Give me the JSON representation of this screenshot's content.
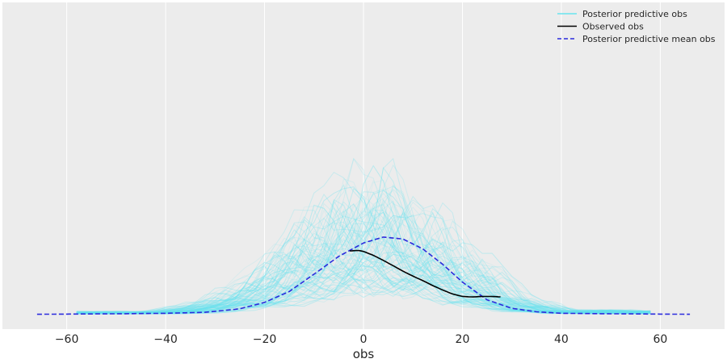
{
  "chart_data": {
    "type": "line",
    "title": "",
    "xlabel": "obs",
    "ylabel": "",
    "xlim": [
      -73,
      73
    ],
    "ylim": [
      -0.003,
      0.063
    ],
    "xticks": [
      -60,
      -40,
      -20,
      0,
      20,
      40,
      60
    ],
    "xtick_labels": [
      "−60",
      "−40",
      "−20",
      "0",
      "20",
      "40",
      "60"
    ],
    "grid": true,
    "background": "#ececec",
    "legend_position": "top-right",
    "series": [
      {
        "name": "Posterior predictive obs",
        "color": "#68e3ef",
        "style": "solid",
        "kind": "sample-band",
        "x": [
          -40,
          -30,
          -20,
          -10,
          0,
          10,
          20,
          30,
          40
        ],
        "y": [
          0.0002,
          0.001,
          0.003,
          0.007,
          0.0105,
          0.0085,
          0.005,
          0.0015,
          0.0003
        ]
      },
      {
        "name": "Observed obs",
        "color": "#000000",
        "style": "solid",
        "x": [
          -2.8,
          -1,
          0,
          2,
          4,
          6,
          8,
          10,
          12,
          14,
          16,
          18,
          20,
          22,
          24,
          26,
          28
        ],
        "y": [
          0.0128,
          0.0129,
          0.0127,
          0.0119,
          0.0109,
          0.0098,
          0.0087,
          0.0077,
          0.0068,
          0.0058,
          0.0049,
          0.0041,
          0.0036,
          0.0035,
          0.0036,
          0.0036,
          0.0035
        ]
      },
      {
        "name": "Posterior predictive mean obs",
        "color": "#2b2bdd",
        "style": "dashed",
        "x": [
          -66,
          -50,
          -40,
          -32,
          -25,
          -20,
          -15,
          -10,
          -5,
          0,
          4,
          8,
          12,
          16,
          20,
          25,
          30,
          35,
          40,
          50,
          66
        ],
        "y": [
          0.0,
          0.0001,
          0.0002,
          0.0004,
          0.0011,
          0.0024,
          0.0046,
          0.0081,
          0.0117,
          0.0144,
          0.0156,
          0.0152,
          0.0132,
          0.0101,
          0.0065,
          0.0029,
          0.0012,
          0.0005,
          0.0002,
          0.0001,
          0.0
        ]
      }
    ]
  }
}
